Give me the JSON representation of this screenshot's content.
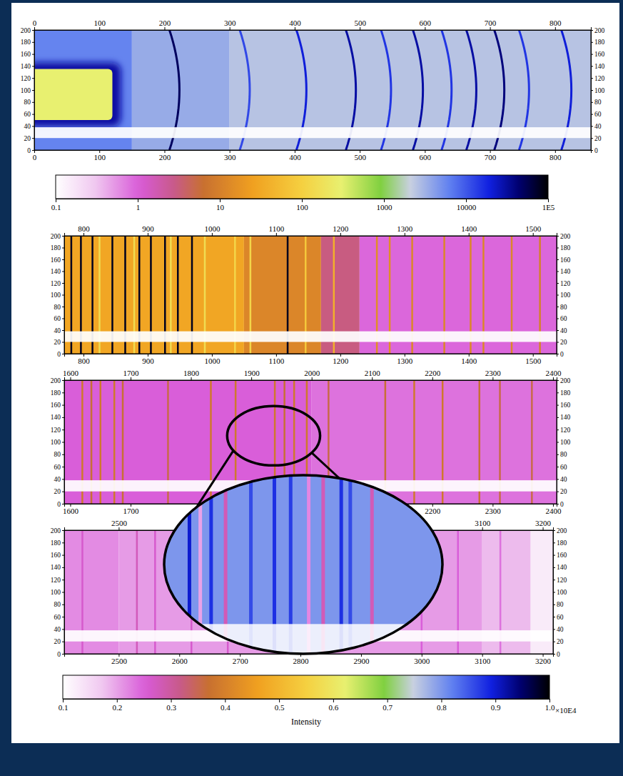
{
  "chart_data": {
    "type": "heatmap",
    "panels": [
      {
        "xlim": [
          0,
          855
        ],
        "ylim": [
          0,
          200
        ],
        "top_xticks": [
          0,
          100,
          200,
          300,
          400,
          500,
          600,
          700,
          800
        ],
        "bottom_xticks": [
          0,
          100,
          200,
          300,
          400,
          500,
          600,
          700,
          800
        ],
        "yticks": [
          0,
          20,
          40,
          60,
          80,
          100,
          120,
          140,
          160,
          180,
          200
        ],
        "bins": [
          0,
          150,
          300,
          855
        ],
        "values": [
          6000,
          3500,
          2500
        ],
        "lines": {
          "line_style": "curved",
          "x": [
            223,
            331,
            418,
            494,
            548,
            597,
            641,
            679,
            722,
            760,
            825
          ],
          "values": [
            50000,
            12000,
            20000,
            30000,
            15000,
            30000,
            15000,
            30000,
            40000,
            15000,
            20000
          ]
        },
        "gap": [
          20,
          38
        ],
        "source": {
          "x": [
            0,
            120
          ],
          "y": [
            50,
            135
          ],
          "value": 300,
          "halo": 30000
        }
      },
      {
        "xlim": [
          770,
          1537
        ],
        "ylim": [
          0,
          200
        ],
        "top_xticks": [
          800,
          900,
          1000,
          1100,
          1200,
          1300,
          1400,
          1500
        ],
        "bottom_xticks": [
          800,
          900,
          1000,
          1100,
          1200,
          1300,
          1400,
          1500
        ],
        "yticks": [
          0,
          20,
          40,
          60,
          80,
          100,
          120,
          140,
          160,
          180,
          200
        ],
        "bins": [
          770,
          1050,
          1170,
          1230,
          1537
        ],
        "values": [
          30,
          12,
          3,
          0.9
        ],
        "lines": {
          "line_style": "solid",
          "x": [
            781,
            796,
            814,
            825,
            845,
            865,
            879,
            887,
            905,
            927,
            936,
            947,
            969,
            989,
            1036,
            1060,
            1118,
            1146,
            1190,
            1257,
            1277,
            1312,
            1362,
            1403,
            1423,
            1467,
            1511
          ],
          "values": [
            80000,
            80000,
            80000,
            150,
            80000,
            80000,
            150,
            80000,
            80000,
            80000,
            150,
            80000,
            80000,
            150,
            120,
            120,
            80000,
            80,
            40,
            15,
            15,
            12,
            12,
            12,
            12,
            12,
            10
          ]
        },
        "gap": [
          20,
          38
        ]
      },
      {
        "xlim": [
          1590,
          2406
        ],
        "ylim": [
          0,
          200
        ],
        "top_xticks": [
          1600,
          1700,
          1800,
          1900,
          2000,
          2100,
          2200,
          2300,
          2400
        ],
        "bottom_xticks": [
          1600,
          1700,
          2200,
          2300,
          2400
        ],
        "yticks": [
          0,
          20,
          40,
          60,
          80,
          100,
          120,
          140,
          160,
          180,
          200
        ],
        "bins": [
          1590,
          2000,
          2406
        ],
        "values": [
          1.0,
          0.8
        ],
        "lines": {
          "line_style": "solid",
          "x": [
            1620,
            1635,
            1650,
            1673,
            1687,
            1762,
            1833,
            1874,
            1939,
            1955,
            1971,
            1992,
            2028,
            2122,
            2170,
            2217,
            2278,
            2312,
            2365
          ],
          "values": [
            8,
            6,
            8,
            8,
            6,
            5,
            8,
            8,
            8,
            6,
            8,
            8,
            5,
            6,
            8,
            8,
            6,
            5,
            5
          ]
        },
        "gap": [
          20,
          38
        ]
      },
      {
        "xlim": [
          2410,
          3217
        ],
        "ylim": [
          0,
          200
        ],
        "top_xticks": [
          2500,
          3100,
          3200
        ],
        "bottom_xticks": [
          2500,
          2600,
          2700,
          2800,
          2900,
          3000,
          3100,
          3200
        ],
        "yticks": [
          0,
          20,
          40,
          60,
          80,
          100,
          120,
          140,
          160,
          180,
          200
        ],
        "bins": [
          2410,
          2500,
          3100,
          3180,
          3217
        ],
        "values": [
          0.6,
          0.5,
          0.35,
          0.15
        ],
        "lines": {
          "line_style": "solid",
          "x": [
            2440,
            2530,
            2560,
            2620,
            2680,
            3000,
            3060,
            3130
          ],
          "values": [
            1.2,
            1.5,
            1.2,
            1.2,
            1.2,
            1,
            1,
            0.8
          ]
        },
        "gap": [
          20,
          38
        ]
      }
    ],
    "colorbars": [
      {
        "log": true,
        "lim": [
          0.1,
          100000
        ],
        "ticks": [
          0.1,
          1,
          10,
          100,
          1000,
          10000,
          {
            "value": 100000,
            "label": "1E5"
          }
        ]
      },
      {
        "lim": [
          0.1,
          1.0
        ],
        "ticks": [
          0.1,
          0.2,
          0.3,
          0.4,
          0.5,
          0.6,
          0.7,
          0.8,
          0.9,
          {
            "value": 1,
            "label": "1.0"
          }
        ],
        "title": "Intensity",
        "unit": "×10E4"
      }
    ],
    "inset": {
      "panel": 2,
      "xlim": [
        1860,
        2014
      ],
      "ylim": [
        62,
        158
      ],
      "background": 0.8,
      "lines": {
        "x": [
          1874,
          1880,
          1886,
          1894,
          1908,
          1921,
          1930,
          1940,
          1948,
          1958,
          1963,
          1975
        ],
        "values": [
          0.9,
          0.2,
          0.88,
          0.28,
          0.86,
          0.88,
          0.87,
          0.22,
          0.28,
          0.88,
          0.86,
          0.28
        ]
      },
      "gap": [
        62,
        78
      ]
    }
  }
}
